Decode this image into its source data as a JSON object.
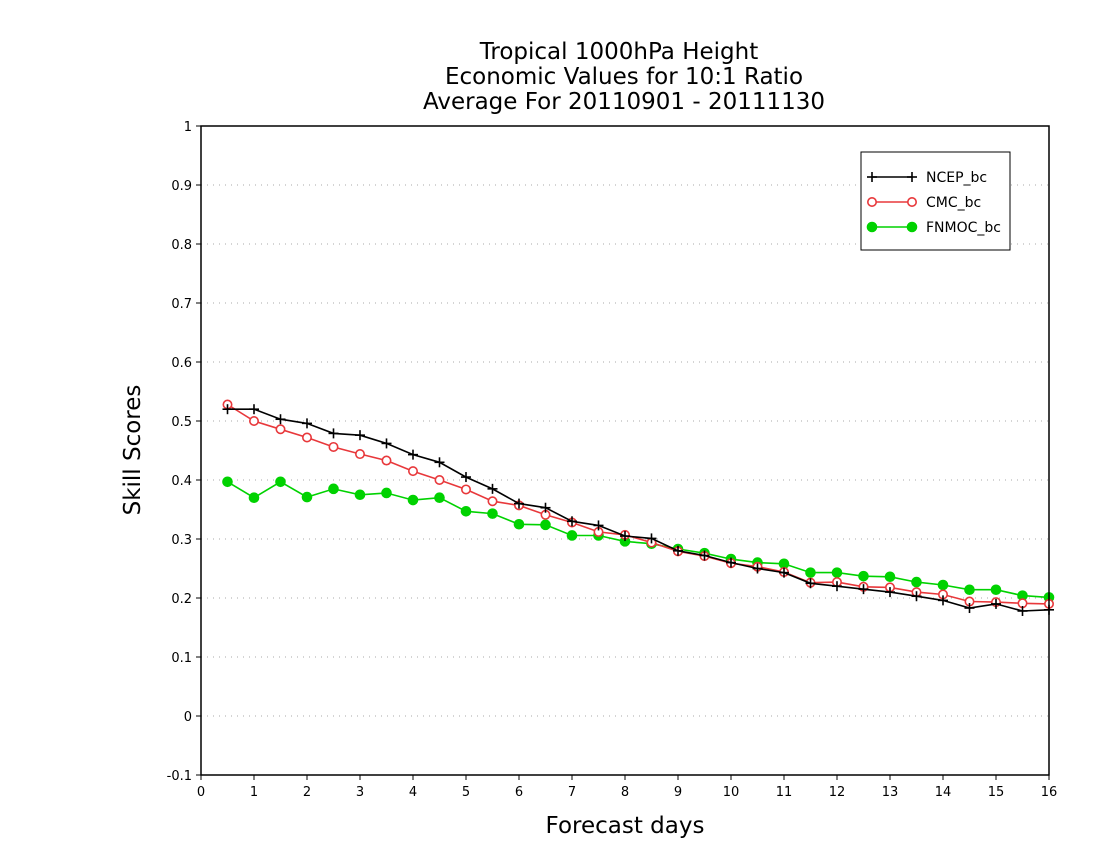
{
  "colors": {
    "NCEP_bc": "#000000",
    "CMC_bc": "#e8383b",
    "FNMOC_bc": "#00d200",
    "grid": "#aaaaaa"
  },
  "chart_data": {
    "type": "line",
    "title": [
      "Tropical 1000hPa Height",
      "Economic Values for 10:1 Ratio",
      "Average For 20110901 - 20111130"
    ],
    "xlabel": "Forecast days",
    "ylabel": "Skill Scores",
    "xlim": [
      0,
      16
    ],
    "ylim": [
      -0.1,
      1
    ],
    "xticks": [
      0,
      1,
      2,
      3,
      4,
      5,
      6,
      7,
      8,
      9,
      10,
      11,
      12,
      13,
      14,
      15,
      16
    ],
    "xtick_labels": [
      "0",
      "1",
      "2",
      "3",
      "4",
      "5",
      "6",
      "7",
      "8",
      "9",
      "10",
      "11",
      "12",
      "13",
      "14",
      "15",
      "16"
    ],
    "yticks": [
      -0.1,
      0,
      0.1,
      0.2,
      0.3,
      0.4,
      0.5,
      0.6,
      0.7,
      0.8,
      0.9,
      1
    ],
    "ytick_labels": [
      "-0.1",
      "0",
      "0.1",
      "0.2",
      "0.3",
      "0.4",
      "0.5",
      "0.6",
      "0.7",
      "0.8",
      "0.9",
      "1"
    ],
    "grid": "horizontal-dotted",
    "legend_position": "top-right",
    "x": [
      0.5,
      1.0,
      1.5,
      2.0,
      2.5,
      3.0,
      3.5,
      4.0,
      4.5,
      5.0,
      5.5,
      6.0,
      6.5,
      7.0,
      7.5,
      8.0,
      8.5,
      9.0,
      9.5,
      10.0,
      10.5,
      11.0,
      11.5,
      12.0,
      12.5,
      13.0,
      13.5,
      14.0,
      14.5,
      15.0,
      15.5,
      16.0
    ],
    "series": [
      {
        "name": "NCEP_bc",
        "marker": "plus",
        "values": [
          0.52,
          0.52,
          0.503,
          0.496,
          0.479,
          0.476,
          0.462,
          0.443,
          0.43,
          0.405,
          0.385,
          0.36,
          0.353,
          0.33,
          0.323,
          0.305,
          0.301,
          0.28,
          0.272,
          0.26,
          0.25,
          0.243,
          0.225,
          0.22,
          0.215,
          0.21,
          0.203,
          0.196,
          0.183,
          0.19,
          0.178,
          0.18
        ]
      },
      {
        "name": "CMC_bc",
        "marker": "open-circle",
        "values": [
          0.528,
          0.5,
          0.486,
          0.472,
          0.456,
          0.444,
          0.433,
          0.415,
          0.4,
          0.384,
          0.364,
          0.357,
          0.341,
          0.328,
          0.312,
          0.307,
          0.294,
          0.279,
          0.271,
          0.259,
          0.253,
          0.244,
          0.226,
          0.227,
          0.219,
          0.218,
          0.21,
          0.206,
          0.194,
          0.193,
          0.191,
          0.19
        ]
      },
      {
        "name": "FNMOC_bc",
        "marker": "filled-circle",
        "values": [
          0.397,
          0.37,
          0.397,
          0.371,
          0.385,
          0.375,
          0.378,
          0.366,
          0.37,
          0.347,
          0.343,
          0.325,
          0.324,
          0.306,
          0.306,
          0.296,
          0.292,
          0.283,
          0.276,
          0.266,
          0.26,
          0.258,
          0.243,
          0.243,
          0.237,
          0.236,
          0.227,
          0.222,
          0.214,
          0.214,
          0.204,
          0.201
        ]
      }
    ]
  }
}
